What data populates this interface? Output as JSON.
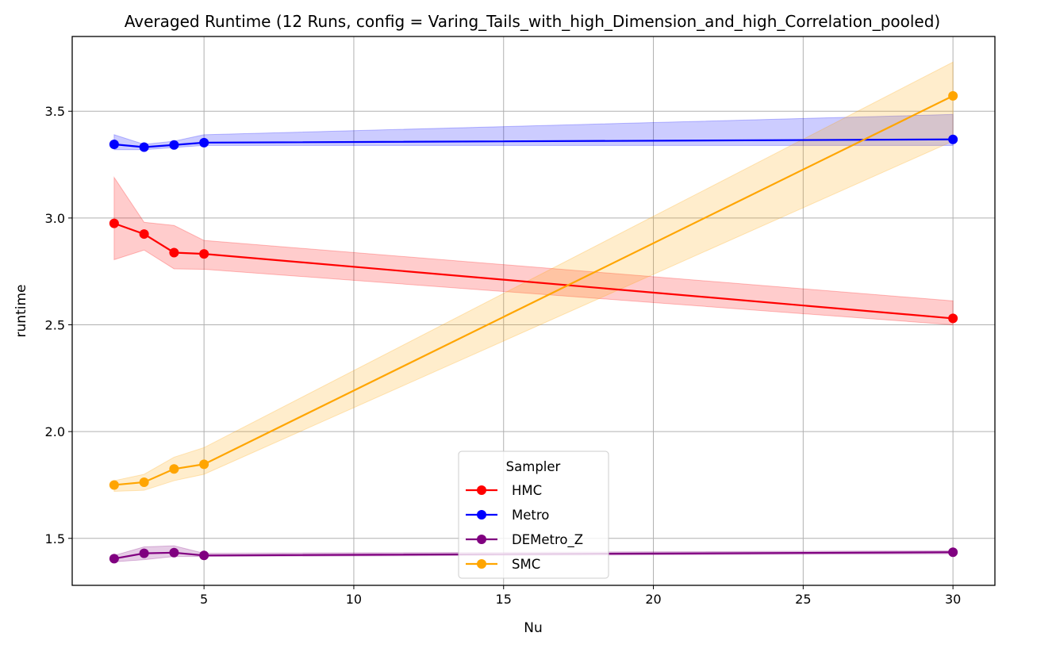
{
  "chart_data": {
    "type": "line",
    "title": "Averaged Runtime (12 Runs, config = Varing_Tails_with_high_Dimension_and_high_Correlation_pooled)",
    "xlabel": "Nu",
    "ylabel": "runtime",
    "xlim": [
      0.6,
      31.4
    ],
    "ylim": [
      1.28,
      3.85
    ],
    "x_ticks": [
      5,
      10,
      15,
      20,
      25,
      30
    ],
    "y_ticks": [
      1.5,
      2.0,
      2.5,
      3.0,
      3.5
    ],
    "x_tick_labels": [
      "5",
      "10",
      "15",
      "20",
      "25",
      "30"
    ],
    "y_tick_labels": [
      "1.5",
      "2.0",
      "2.5",
      "3.0",
      "3.5"
    ],
    "grid": true,
    "legend": {
      "title": "Sampler",
      "position": "bottom-center"
    },
    "x": [
      2,
      3,
      4,
      5,
      30
    ],
    "series": [
      {
        "name": "HMC",
        "color": "#ff0000",
        "values": [
          2.975,
          2.925,
          2.838,
          2.832,
          2.53
        ],
        "band_lower": [
          2.805,
          2.85,
          2.762,
          2.76,
          2.5
        ],
        "band_upper": [
          3.19,
          2.98,
          2.965,
          2.895,
          2.612
        ]
      },
      {
        "name": "Metro",
        "color": "#0000ff",
        "values": [
          3.345,
          3.332,
          3.342,
          3.353,
          3.368
        ],
        "band_lower": [
          3.32,
          3.32,
          3.33,
          3.34,
          3.34
        ],
        "band_upper": [
          3.39,
          3.345,
          3.36,
          3.39,
          3.485
        ]
      },
      {
        "name": "DEMetro_Z",
        "color": "#800080",
        "values": [
          1.405,
          1.43,
          1.433,
          1.42,
          1.435
        ],
        "band_lower": [
          1.39,
          1.4,
          1.415,
          1.415,
          1.428
        ],
        "band_upper": [
          1.42,
          1.46,
          1.465,
          1.43,
          1.442
        ]
      },
      {
        "name": "SMC",
        "color": "#ffa500",
        "values": [
          1.75,
          1.763,
          1.825,
          1.847,
          3.572
        ],
        "band_lower": [
          1.72,
          1.725,
          1.77,
          1.8,
          3.36
        ],
        "band_upper": [
          1.77,
          1.8,
          1.88,
          1.925,
          3.73
        ]
      }
    ]
  }
}
